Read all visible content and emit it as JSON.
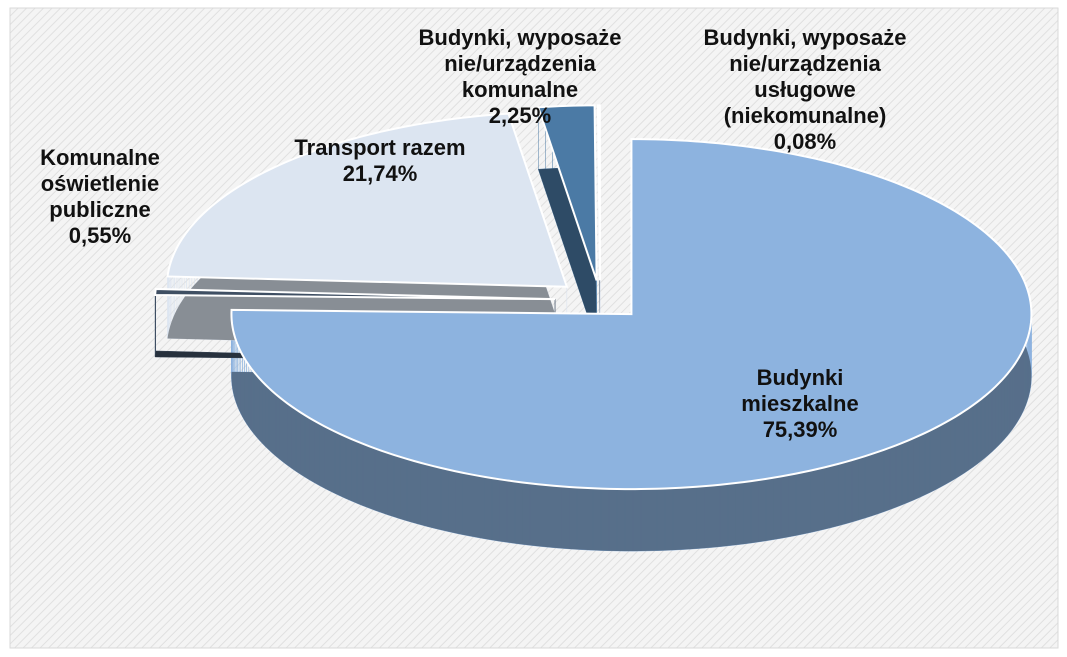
{
  "chart_data": {
    "type": "pie",
    "categories": [
      "Budynki mieszkalne",
      "Komunalne oświetlenie publiczne",
      "Transport razem",
      "Budynki, wyposażenie/urządzenia komunalne",
      "Budynki, wyposażenie/urządzenia usługowe (niekomunalne)"
    ],
    "values": [
      75.39,
      0.55,
      21.74,
      2.25,
      0.08
    ],
    "value_labels": [
      "75,39%",
      "0,55%",
      "21,74%",
      "2,25%",
      "0,08%"
    ],
    "colors": [
      "#8db3df",
      "#3f4f63",
      "#dce5f1",
      "#4b7aa5",
      "#c5d3e5"
    ]
  }
}
